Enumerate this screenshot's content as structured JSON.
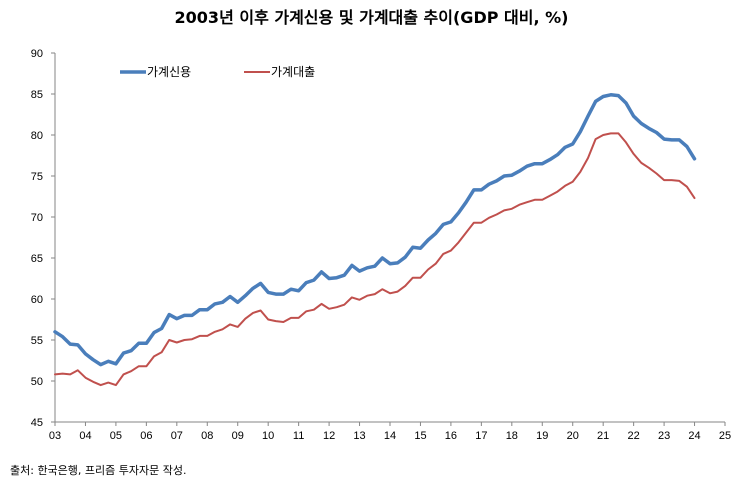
{
  "chart_data": {
    "type": "line",
    "title": "2003년 이후 가계신용 및 가계대출 추이(GDP 대비, %)",
    "xlabel": "",
    "ylabel": "",
    "ylim": [
      45,
      90
    ],
    "yticks": [
      "45",
      "50",
      "55",
      "60",
      "65",
      "70",
      "75",
      "80",
      "85",
      "90"
    ],
    "xticks": [
      "03",
      "04",
      "05",
      "06",
      "07",
      "08",
      "09",
      "10",
      "11",
      "12",
      "13",
      "14",
      "15",
      "16",
      "17",
      "18",
      "19",
      "20",
      "21",
      "22",
      "23",
      "24",
      "25"
    ],
    "x_range": [
      2003.0,
      2025.0
    ],
    "legend_position": "top-left",
    "series": [
      {
        "name": "가계신용",
        "color": "#4a7ebb",
        "x": [
          2003.0,
          2003.25,
          2003.5,
          2003.75,
          2004.0,
          2004.25,
          2004.5,
          2004.75,
          2005.0,
          2005.25,
          2005.5,
          2005.75,
          2006.0,
          2006.25,
          2006.5,
          2006.75,
          2007.0,
          2007.25,
          2007.5,
          2007.75,
          2008.0,
          2008.25,
          2008.5,
          2008.75,
          2009.0,
          2009.25,
          2009.5,
          2009.75,
          2010.0,
          2010.25,
          2010.5,
          2010.75,
          2011.0,
          2011.25,
          2011.5,
          2011.75,
          2012.0,
          2012.25,
          2012.5,
          2012.75,
          2013.0,
          2013.25,
          2013.5,
          2013.75,
          2014.0,
          2014.25,
          2014.5,
          2014.75,
          2015.0,
          2015.25,
          2015.5,
          2015.75,
          2016.0,
          2016.25,
          2016.5,
          2016.75,
          2017.0,
          2017.25,
          2017.5,
          2017.75,
          2018.0,
          2018.25,
          2018.5,
          2018.75,
          2019.0,
          2019.25,
          2019.5,
          2019.75,
          2020.0,
          2020.25,
          2020.5,
          2020.75,
          2021.0,
          2021.25,
          2021.5,
          2021.75,
          2022.0,
          2022.25,
          2022.5,
          2022.75,
          2023.0,
          2023.25,
          2023.5,
          2023.75,
          2024.0
        ],
        "values": [
          56.0,
          55.4,
          54.5,
          54.4,
          53.3,
          52.6,
          52.0,
          52.4,
          52.1,
          53.4,
          53.7,
          54.6,
          54.6,
          55.9,
          56.4,
          58.1,
          57.6,
          58.0,
          58.0,
          58.7,
          58.7,
          59.4,
          59.6,
          60.3,
          59.6,
          60.4,
          61.3,
          61.9,
          60.8,
          60.6,
          60.6,
          61.2,
          61.0,
          62.0,
          62.3,
          63.3,
          62.5,
          62.6,
          62.9,
          64.1,
          63.4,
          63.8,
          64.0,
          65.0,
          64.3,
          64.4,
          65.1,
          66.3,
          66.2,
          67.2,
          68.0,
          69.1,
          69.4,
          70.5,
          71.8,
          73.3,
          73.3,
          74.0,
          74.4,
          75.0,
          75.1,
          75.6,
          76.2,
          76.5,
          76.5,
          77.0,
          77.6,
          78.5,
          78.9,
          80.4,
          82.3,
          84.1,
          84.7,
          84.9,
          84.8,
          83.9,
          82.3,
          81.4,
          80.8,
          80.3,
          79.5,
          79.4,
          79.4,
          78.6,
          77.1
        ]
      },
      {
        "name": "가계대출",
        "color": "#c0504d",
        "x": [
          2003.0,
          2003.25,
          2003.5,
          2003.75,
          2004.0,
          2004.25,
          2004.5,
          2004.75,
          2005.0,
          2005.25,
          2005.5,
          2005.75,
          2006.0,
          2006.25,
          2006.5,
          2006.75,
          2007.0,
          2007.25,
          2007.5,
          2007.75,
          2008.0,
          2008.25,
          2008.5,
          2008.75,
          2009.0,
          2009.25,
          2009.5,
          2009.75,
          2010.0,
          2010.25,
          2010.5,
          2010.75,
          2011.0,
          2011.25,
          2011.5,
          2011.75,
          2012.0,
          2012.25,
          2012.5,
          2012.75,
          2013.0,
          2013.25,
          2013.5,
          2013.75,
          2014.0,
          2014.25,
          2014.5,
          2014.75,
          2015.0,
          2015.25,
          2015.5,
          2015.75,
          2016.0,
          2016.25,
          2016.5,
          2016.75,
          2017.0,
          2017.25,
          2017.5,
          2017.75,
          2018.0,
          2018.25,
          2018.5,
          2018.75,
          2019.0,
          2019.25,
          2019.5,
          2019.75,
          2020.0,
          2020.25,
          2020.5,
          2020.75,
          2021.0,
          2021.25,
          2021.5,
          2021.75,
          2022.0,
          2022.25,
          2022.5,
          2022.75,
          2023.0,
          2023.25,
          2023.5,
          2023.75,
          2024.0
        ],
        "values": [
          50.8,
          50.9,
          50.8,
          51.3,
          50.4,
          49.9,
          49.5,
          49.8,
          49.5,
          50.8,
          51.2,
          51.8,
          51.8,
          53.0,
          53.5,
          55.0,
          54.7,
          55.0,
          55.1,
          55.5,
          55.5,
          56.0,
          56.3,
          56.9,
          56.6,
          57.6,
          58.3,
          58.6,
          57.5,
          57.3,
          57.2,
          57.7,
          57.7,
          58.5,
          58.7,
          59.4,
          58.8,
          59.0,
          59.3,
          60.2,
          59.9,
          60.4,
          60.6,
          61.2,
          60.7,
          60.9,
          61.6,
          62.6,
          62.6,
          63.6,
          64.3,
          65.5,
          65.9,
          66.9,
          68.1,
          69.3,
          69.3,
          69.9,
          70.3,
          70.8,
          71.0,
          71.5,
          71.8,
          72.1,
          72.1,
          72.6,
          73.1,
          73.8,
          74.3,
          75.5,
          77.2,
          79.5,
          80.0,
          80.2,
          80.2,
          79.1,
          77.7,
          76.6,
          76.0,
          75.3,
          74.5,
          74.5,
          74.4,
          73.7,
          72.3
        ]
      }
    ]
  },
  "source": "출처: 한국은행, 프리즘 투자자문 작성."
}
